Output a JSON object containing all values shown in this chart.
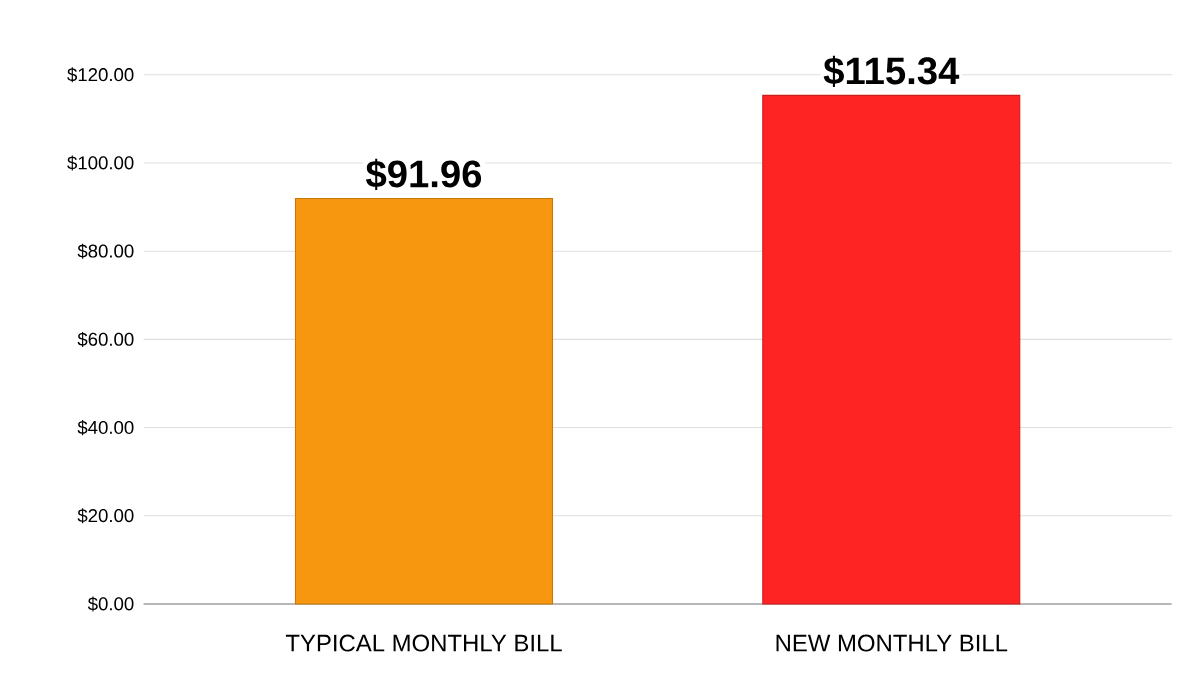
{
  "chart_data": {
    "type": "bar",
    "categories": [
      "TYPICAL MONTHLY BILL",
      "NEW MONTHLY BILL"
    ],
    "values": [
      91.96,
      115.34
    ],
    "colors": [
      "#f7960f",
      "#ff2424"
    ],
    "value_labels": [
      "$91.96",
      "$115.34"
    ],
    "ylim": [
      0,
      120
    ],
    "yticks": [
      {
        "value": 0,
        "label": "$0.00"
      },
      {
        "value": 20,
        "label": "$20.00"
      },
      {
        "value": 40,
        "label": "$40.00"
      },
      {
        "value": 60,
        "label": "$60.00"
      },
      {
        "value": 80,
        "label": "$80.00"
      },
      {
        "value": 100,
        "label": "$100.00"
      },
      {
        "value": 120,
        "label": "$120.00"
      }
    ],
    "grid": "y"
  }
}
